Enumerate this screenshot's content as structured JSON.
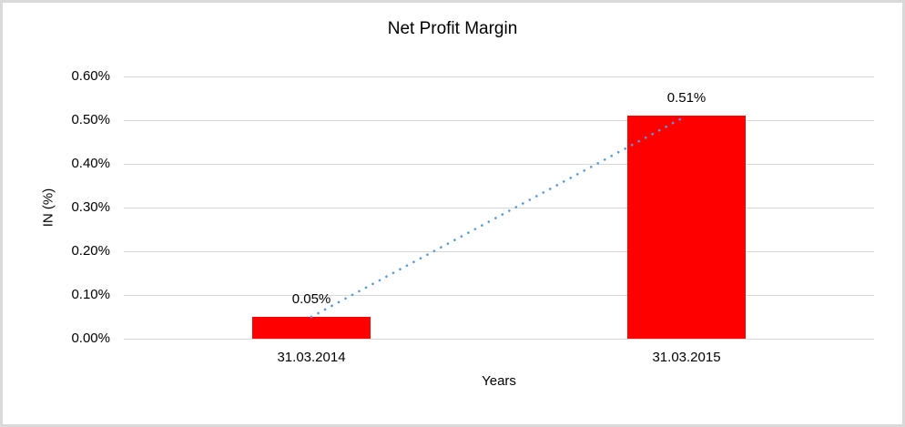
{
  "chart_data": {
    "type": "bar",
    "title": "Net Profit Margin",
    "xlabel": "Years",
    "ylabel": "IN (%)",
    "categories": [
      "31.03.2014",
      "31.03.2015"
    ],
    "values": [
      0.05,
      0.51
    ],
    "bar_labels": [
      "0.05%",
      "0.51%"
    ],
    "unit": "%",
    "ylim": [
      0,
      0.6
    ],
    "ytick_interval": 0.1,
    "ytick_labels": [
      "0.60%",
      "0.50%",
      "0.40%",
      "0.30%",
      "0.20%",
      "0.10%",
      "0.00%"
    ],
    "grid": "horizontal",
    "legend_position": "none",
    "bar_color": "#FF0000",
    "gridline_color": "#D9D9D9",
    "border_color": "#D9D9D9",
    "text_color": "#000000",
    "trendline": {
      "style": "dotted",
      "color": "#5B9BD5",
      "connects": [
        "bar-1-top",
        "bar-2-top"
      ]
    }
  }
}
